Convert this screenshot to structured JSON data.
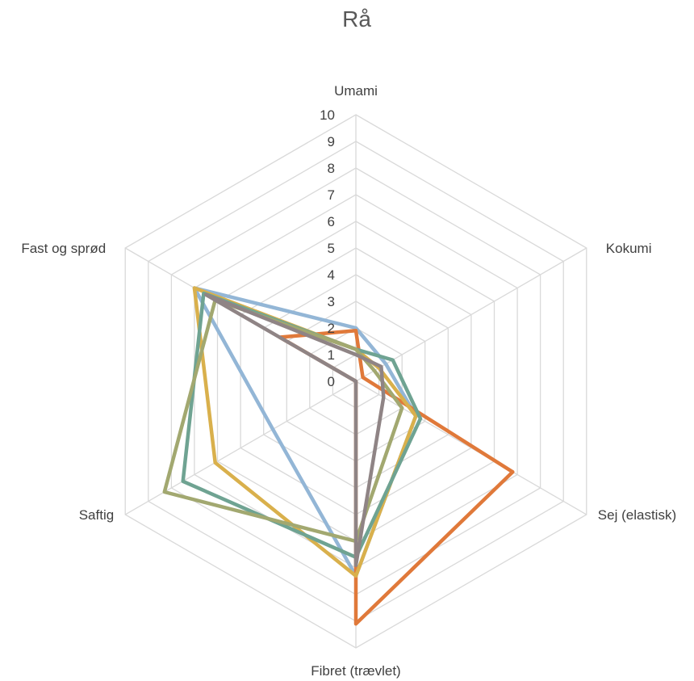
{
  "chart_data": {
    "type": "radar",
    "title": "Rå",
    "axes": [
      "Umami",
      "Kokumi",
      "Sej (elastisk)",
      "Fibret (trævlet)",
      "Saftig",
      "Fast og sprød"
    ],
    "rticks": [
      "0",
      "1",
      "2",
      "3",
      "4",
      "5",
      "6",
      "7",
      "8",
      "9",
      "10"
    ],
    "rlim": [
      0,
      10
    ],
    "grid": true,
    "legend": "none",
    "series": [
      {
        "color": "#93b6d6",
        "values": [
          2.0,
          1.3,
          2.6,
          7.3,
          3.6,
          7.0
        ]
      },
      {
        "color": "#e0793a",
        "values": [
          1.9,
          0.3,
          6.8,
          9.1,
          0.0,
          3.3
        ]
      },
      {
        "color": "#d9b04c",
        "values": [
          1.2,
          1.0,
          2.6,
          7.3,
          6.1,
          7.0
        ]
      },
      {
        "color": "#6fa392",
        "values": [
          1.2,
          1.6,
          2.8,
          6.6,
          7.5,
          6.6
        ]
      },
      {
        "color": "#a2a870",
        "values": [
          1.2,
          0.8,
          2.0,
          6.0,
          8.3,
          6.1
        ]
      },
      {
        "color": "#8f8485",
        "values": [
          1.0,
          1.1,
          1.2,
          6.9,
          0.0,
          6.5
        ]
      }
    ]
  }
}
